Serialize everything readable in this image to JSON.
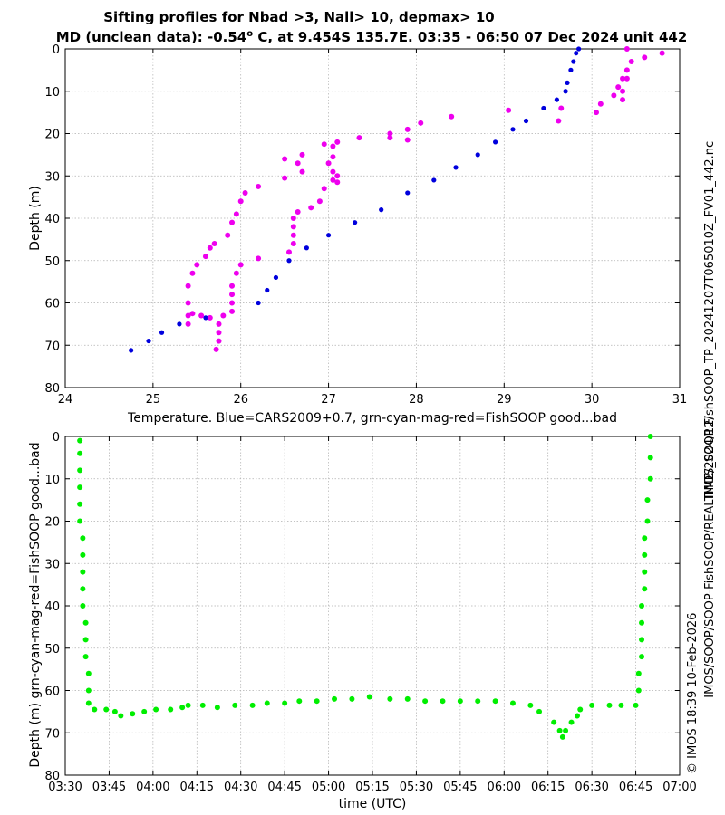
{
  "title_line1": "Sifting profiles for Nbad >3, Nall> 10, depmax> 10",
  "title_line2_prefix": "MD (unclean data): -0.54",
  "title_line2_deg": "o",
  "title_line2_suffix": " C, at 9.454S 135.7E. 03:35 - 06:50 07 Dec 2024 unit 442",
  "side_text_filename": "IMOS_SOOP-FishSOOP_TP_20241207T065010Z_FV01_442.nc",
  "side_text_path": "IMOS/SOOP/SOOP-FishSOOP/REALTIME/2024/12/",
  "side_text_copyright": "© IMOS 18:39 10-Feb-2026",
  "colors": {
    "cars": "#0000dd",
    "bad": "#ee00ee",
    "good": "#00ee00",
    "grid": "#b0b0b0"
  },
  "chart_data": [
    {
      "type": "scatter",
      "xlabel": "Temperature. Blue=CARS2009+0.7, grn-cyan-mag-red=FishSOOP good...bad",
      "ylabel": "Depth (m)",
      "xlim": [
        24,
        31
      ],
      "ylim": [
        80,
        0
      ],
      "y_reversed": true,
      "grid": true,
      "xticks": [
        "24",
        "25",
        "26",
        "27",
        "28",
        "29",
        "30",
        "31"
      ],
      "yticks": [
        "0",
        "10",
        "20",
        "30",
        "40",
        "50",
        "60",
        "70",
        "80"
      ],
      "series": [
        {
          "color": "blue",
          "points": [
            [
              29.85,
              0
            ],
            [
              29.82,
              1
            ],
            [
              29.79,
              3
            ],
            [
              29.76,
              5
            ],
            [
              29.72,
              8
            ],
            [
              29.7,
              10
            ],
            [
              29.6,
              12
            ],
            [
              29.45,
              14
            ],
            [
              29.25,
              17
            ],
            [
              29.1,
              19
            ],
            [
              28.9,
              22
            ],
            [
              28.7,
              25
            ],
            [
              28.45,
              28
            ],
            [
              28.2,
              31
            ],
            [
              27.9,
              34
            ],
            [
              27.6,
              38
            ],
            [
              27.3,
              41
            ],
            [
              27.0,
              44
            ],
            [
              26.75,
              47
            ],
            [
              26.55,
              50
            ],
            [
              26.4,
              54
            ],
            [
              26.3,
              57
            ],
            [
              26.2,
              60
            ],
            [
              25.9,
              62
            ],
            [
              25.6,
              63.5
            ],
            [
              25.3,
              65
            ],
            [
              25.1,
              67
            ],
            [
              24.95,
              69
            ],
            [
              24.75,
              71.2
            ]
          ]
        },
        {
          "color": "magenta",
          "points": [
            [
              30.8,
              1
            ],
            [
              30.6,
              2
            ],
            [
              30.4,
              0
            ],
            [
              30.45,
              3
            ],
            [
              30.4,
              5
            ],
            [
              30.35,
              7
            ],
            [
              30.3,
              9
            ],
            [
              30.25,
              11
            ],
            [
              30.1,
              13
            ],
            [
              30.05,
              15
            ],
            [
              30.4,
              7
            ],
            [
              30.35,
              10
            ],
            [
              30.35,
              12
            ],
            [
              29.65,
              14
            ],
            [
              29.62,
              17
            ],
            [
              29.05,
              14.5
            ],
            [
              28.4,
              16
            ],
            [
              28.05,
              17.5
            ],
            [
              27.9,
              19
            ],
            [
              27.9,
              21.5
            ],
            [
              27.7,
              20
            ],
            [
              27.7,
              21
            ],
            [
              27.35,
              21
            ],
            [
              27.1,
              22
            ],
            [
              26.95,
              22.5
            ],
            [
              27.05,
              23
            ],
            [
              27.05,
              25.5
            ],
            [
              27.0,
              27
            ],
            [
              27.05,
              29
            ],
            [
              27.1,
              30
            ],
            [
              27.05,
              31
            ],
            [
              27.1,
              31.5
            ],
            [
              26.95,
              33
            ],
            [
              26.9,
              36
            ],
            [
              26.8,
              37.5
            ],
            [
              26.65,
              38.5
            ],
            [
              26.6,
              40
            ],
            [
              26.6,
              42
            ],
            [
              26.6,
              44
            ],
            [
              26.6,
              46
            ],
            [
              26.55,
              48
            ],
            [
              26.7,
              25
            ],
            [
              26.65,
              27
            ],
            [
              26.7,
              29
            ],
            [
              26.5,
              30.5
            ],
            [
              26.5,
              26
            ],
            [
              26.2,
              49.5
            ],
            [
              26.0,
              51
            ],
            [
              25.95,
              53
            ],
            [
              25.9,
              56
            ],
            [
              25.9,
              58
            ],
            [
              25.9,
              60
            ],
            [
              25.9,
              62
            ],
            [
              25.8,
              63
            ],
            [
              25.75,
              65
            ],
            [
              25.75,
              67
            ],
            [
              25.75,
              69
            ],
            [
              25.72,
              71
            ],
            [
              25.65,
              63.5
            ],
            [
              25.55,
              63
            ],
            [
              25.45,
              62.5
            ],
            [
              25.4,
              63
            ],
            [
              25.4,
              65
            ],
            [
              25.4,
              60
            ],
            [
              25.4,
              56
            ],
            [
              25.45,
              53
            ],
            [
              25.5,
              51
            ],
            [
              25.6,
              49
            ],
            [
              25.65,
              47
            ],
            [
              25.7,
              46
            ],
            [
              25.85,
              44
            ],
            [
              25.9,
              41
            ],
            [
              25.95,
              39
            ],
            [
              26.0,
              36
            ],
            [
              26.05,
              34
            ],
            [
              26.2,
              32.5
            ]
          ]
        }
      ]
    },
    {
      "type": "scatter",
      "xlabel": "time (UTC)",
      "ylabel": "Depth (m) grn-cyan-mag-red=FishSOOP good...bad",
      "xlim": [
        "03:30",
        "07:00"
      ],
      "ylim": [
        80,
        0
      ],
      "y_reversed": true,
      "grid": true,
      "xticks": [
        "03:30",
        "03:45",
        "04:00",
        "04:15",
        "04:30",
        "04:45",
        "05:00",
        "05:15",
        "05:30",
        "05:45",
        "06:00",
        "06:15",
        "06:30",
        "06:45",
        "07:00"
      ],
      "yticks": [
        "0",
        "10",
        "20",
        "30",
        "40",
        "50",
        "60",
        "70",
        "80"
      ],
      "series": [
        {
          "color": "green",
          "points": [
            [
              "03:35",
              1
            ],
            [
              "03:35",
              4
            ],
            [
              "03:35",
              8
            ],
            [
              "03:35",
              12
            ],
            [
              "03:35",
              16
            ],
            [
              "03:35",
              20
            ],
            [
              "03:36",
              24
            ],
            [
              "03:36",
              28
            ],
            [
              "03:36",
              32
            ],
            [
              "03:36",
              36
            ],
            [
              "03:36",
              40
            ],
            [
              "03:37",
              44
            ],
            [
              "03:37",
              48
            ],
            [
              "03:37",
              52
            ],
            [
              "03:38",
              56
            ],
            [
              "03:38",
              60
            ],
            [
              "03:38",
              63
            ],
            [
              "03:40",
              64.5
            ],
            [
              "03:44",
              64.5
            ],
            [
              "03:47",
              65
            ],
            [
              "03:49",
              66
            ],
            [
              "03:53",
              65.5
            ],
            [
              "03:57",
              65
            ],
            [
              "04:01",
              64.5
            ],
            [
              "04:06",
              64.5
            ],
            [
              "04:10",
              64
            ],
            [
              "04:12",
              63.5
            ],
            [
              "04:17",
              63.5
            ],
            [
              "04:22",
              64
            ],
            [
              "04:28",
              63.5
            ],
            [
              "04:34",
              63.5
            ],
            [
              "04:39",
              63
            ],
            [
              "04:45",
              63
            ],
            [
              "04:50",
              62.5
            ],
            [
              "04:56",
              62.5
            ],
            [
              "05:02",
              62
            ],
            [
              "05:08",
              62
            ],
            [
              "05:14",
              61.5
            ],
            [
              "05:21",
              62
            ],
            [
              "05:27",
              62
            ],
            [
              "05:33",
              62.5
            ],
            [
              "05:39",
              62.5
            ],
            [
              "05:45",
              62.5
            ],
            [
              "05:51",
              62.5
            ],
            [
              "05:57",
              62.5
            ],
            [
              "06:03",
              63
            ],
            [
              "06:09",
              63.5
            ],
            [
              "06:12",
              65
            ],
            [
              "06:17",
              67.5
            ],
            [
              "06:19",
              69.5
            ],
            [
              "06:20",
              71
            ],
            [
              "06:21",
              69.5
            ],
            [
              "06:23",
              67.5
            ],
            [
              "06:25",
              66
            ],
            [
              "06:26",
              64.5
            ],
            [
              "06:30",
              63.5
            ],
            [
              "06:36",
              63.5
            ],
            [
              "06:40",
              63.5
            ],
            [
              "06:45",
              63.5
            ],
            [
              "06:46",
              60
            ],
            [
              "06:46",
              56
            ],
            [
              "06:47",
              52
            ],
            [
              "06:47",
              48
            ],
            [
              "06:47",
              44
            ],
            [
              "06:47",
              40
            ],
            [
              "06:48",
              36
            ],
            [
              "06:48",
              32
            ],
            [
              "06:48",
              28
            ],
            [
              "06:48",
              24
            ],
            [
              "06:49",
              20
            ],
            [
              "06:49",
              15
            ],
            [
              "06:50",
              10
            ],
            [
              "06:50",
              5
            ],
            [
              "06:50",
              0
            ]
          ]
        }
      ]
    }
  ]
}
